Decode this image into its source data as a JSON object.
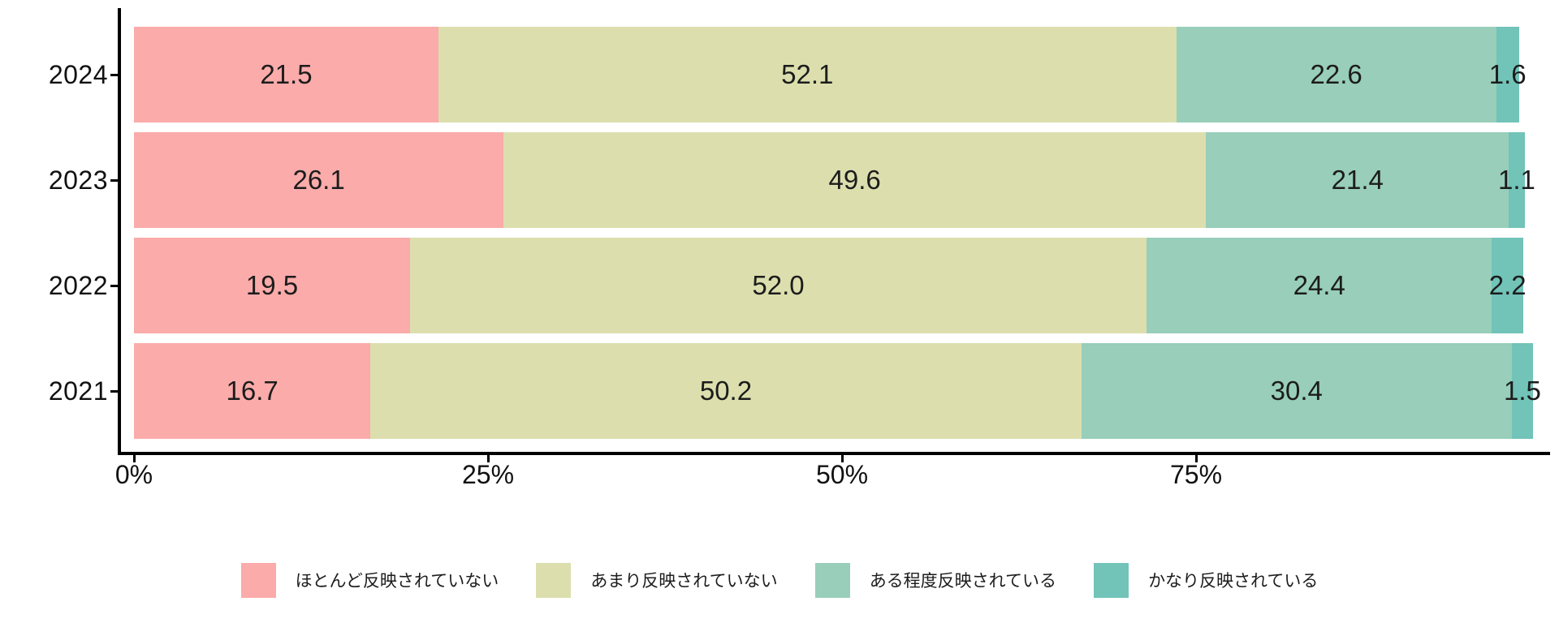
{
  "chart_data": {
    "type": "bar",
    "orientation": "horizontal",
    "stacked": true,
    "title": "",
    "categories": [
      "2024",
      "2023",
      "2022",
      "2021"
    ],
    "series": [
      {
        "name": "ほとんど反映されていない",
        "color": "#FAABAA",
        "values": [
          21.5,
          26.1,
          19.5,
          16.7
        ]
      },
      {
        "name": "あまり反映されていない",
        "color": "#DCDFAD",
        "values": [
          52.1,
          49.6,
          52.0,
          50.2
        ]
      },
      {
        "name": "ある程度反映されている",
        "color": "#98CEBA",
        "values": [
          22.6,
          21.4,
          24.4,
          30.4
        ]
      },
      {
        "name": "かなり反映されている",
        "color": "#72C3B8",
        "values": [
          1.6,
          1.1,
          2.2,
          1.5
        ]
      }
    ],
    "x_axis": {
      "range": [
        -1,
        100
      ],
      "ticks": [
        {
          "label": "0%",
          "value": 0
        },
        {
          "label": "25%",
          "value": 25
        },
        {
          "label": "50%",
          "value": 50
        },
        {
          "label": "75%",
          "value": 75
        }
      ]
    },
    "value_labels": "shown_inside_segments_one_decimal",
    "legend_position": "bottom",
    "grid": false,
    "colors": {
      "axis": "#000000",
      "text": "#1c1c1c",
      "background": "#ffffff"
    }
  }
}
